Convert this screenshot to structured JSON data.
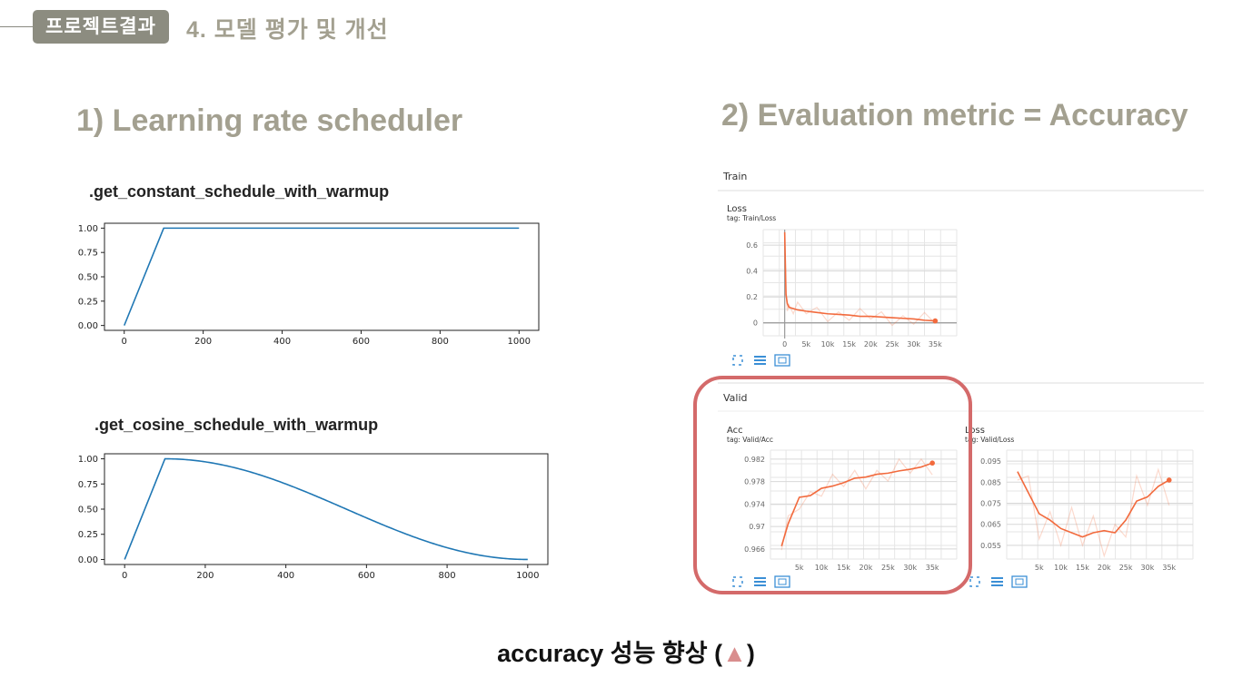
{
  "header": {
    "tag": "프로젝트결과",
    "title": "4. 모델 평가 및 개선"
  },
  "left": {
    "title": "1)  Learning rate scheduler",
    "chart1_label": ".get_constant_schedule_with_warmup",
    "chart2_label": ".get_cosine_schedule_with_warmup"
  },
  "right": {
    "title": "2) Evaluation metric = Accuracy",
    "train_section": "Train",
    "valid_section": "Valid",
    "train_loss_title": "Loss",
    "train_loss_tag": "tag: Train/Loss",
    "valid_acc_title": "Acc",
    "valid_acc_tag": "tag: Valid/Acc",
    "valid_loss_title": "Loss",
    "valid_loss_tag": "tag: Valid/Loss",
    "highlight_color": "#d46a6a"
  },
  "bottom": {
    "text": "accuracy 성능 향상 (",
    "triangle": "▲",
    "close": ")"
  },
  "chart_data": [
    {
      "type": "line",
      "title": ".get_constant_schedule_with_warmup",
      "xlim": [
        0,
        1000
      ],
      "ylim": [
        0,
        1
      ],
      "xticks": [
        "0",
        "200",
        "400",
        "600",
        "800",
        "1000"
      ],
      "yticks": [
        "0.00",
        "0.25",
        "0.50",
        "0.75",
        "1.00"
      ],
      "series": [
        {
          "x": [
            0,
            100,
            1000
          ],
          "y": [
            0,
            1,
            1
          ],
          "color": "#1f77b4"
        }
      ]
    },
    {
      "type": "line",
      "title": ".get_cosine_schedule_with_warmup",
      "xlim": [
        0,
        1000
      ],
      "ylim": [
        0,
        1
      ],
      "xticks": [
        "0",
        "200",
        "400",
        "600",
        "800",
        "1000"
      ],
      "yticks": [
        "0.00",
        "0.25",
        "0.50",
        "0.75",
        "1.00"
      ],
      "series": [
        {
          "x": [
            0,
            100,
            200,
            300,
            400,
            500,
            600,
            700,
            800,
            900,
            1000
          ],
          "y": [
            0,
            1,
            0.97,
            0.883,
            0.75,
            0.587,
            0.413,
            0.25,
            0.117,
            0.03,
            0
          ],
          "color": "#1f77b4"
        }
      ]
    },
    {
      "type": "line",
      "title": "Loss",
      "subtitle": "tag: Train/Loss",
      "xticks": [
        "0",
        "5k",
        "10k",
        "15k",
        "20k",
        "25k",
        "30k",
        "35k"
      ],
      "yticks": [
        "0",
        "0.2",
        "0.4",
        "0.6"
      ],
      "series": [
        {
          "x": [
            0,
            300,
            600,
            1000,
            2000,
            3000,
            5000,
            7500,
            10000,
            12500,
            15000,
            17500,
            20000,
            22500,
            25000,
            27500,
            30000,
            32500,
            35000
          ],
          "y": [
            0.7,
            0.22,
            0.15,
            0.12,
            0.11,
            0.1,
            0.09,
            0.08,
            0.07,
            0.065,
            0.06,
            0.05,
            0.05,
            0.045,
            0.04,
            0.035,
            0.03,
            0.02,
            0.015
          ],
          "color": "#f26a3d"
        }
      ]
    },
    {
      "type": "line",
      "title": "Acc",
      "subtitle": "tag: Valid/Acc",
      "xticks": [
        "5k",
        "10k",
        "15k",
        "20k",
        "25k",
        "30k",
        "35k"
      ],
      "yticks": [
        "0.966",
        "0.97",
        "0.974",
        "0.978",
        "0.982"
      ],
      "series": [
        {
          "x": [
            1000,
            2500,
            5000,
            7500,
            10000,
            12500,
            15000,
            17500,
            20000,
            22500,
            25000,
            27500,
            30000,
            32500,
            35000
          ],
          "y": [
            0.9665,
            0.9705,
            0.9752,
            0.9755,
            0.9768,
            0.9772,
            0.9778,
            0.9786,
            0.9788,
            0.9793,
            0.9795,
            0.9799,
            0.9802,
            0.9806,
            0.9813
          ],
          "color": "#f26a3d"
        }
      ]
    },
    {
      "type": "line",
      "title": "Loss",
      "subtitle": "tag: Valid/Loss",
      "xticks": [
        "5k",
        "10k",
        "15k",
        "20k",
        "25k",
        "30k",
        "35k"
      ],
      "yticks": [
        "0.055",
        "0.065",
        "0.075",
        "0.085",
        "0.095"
      ],
      "series": [
        {
          "x": [
            0,
            2500,
            5000,
            7500,
            10000,
            12500,
            15000,
            17500,
            20000,
            22500,
            25000,
            27500,
            30000,
            32500,
            35000
          ],
          "y": [
            0.09,
            0.08,
            0.07,
            0.067,
            0.063,
            0.061,
            0.059,
            0.061,
            0.062,
            0.061,
            0.067,
            0.076,
            0.078,
            0.083,
            0.086
          ],
          "color": "#f26a3d"
        }
      ]
    }
  ]
}
